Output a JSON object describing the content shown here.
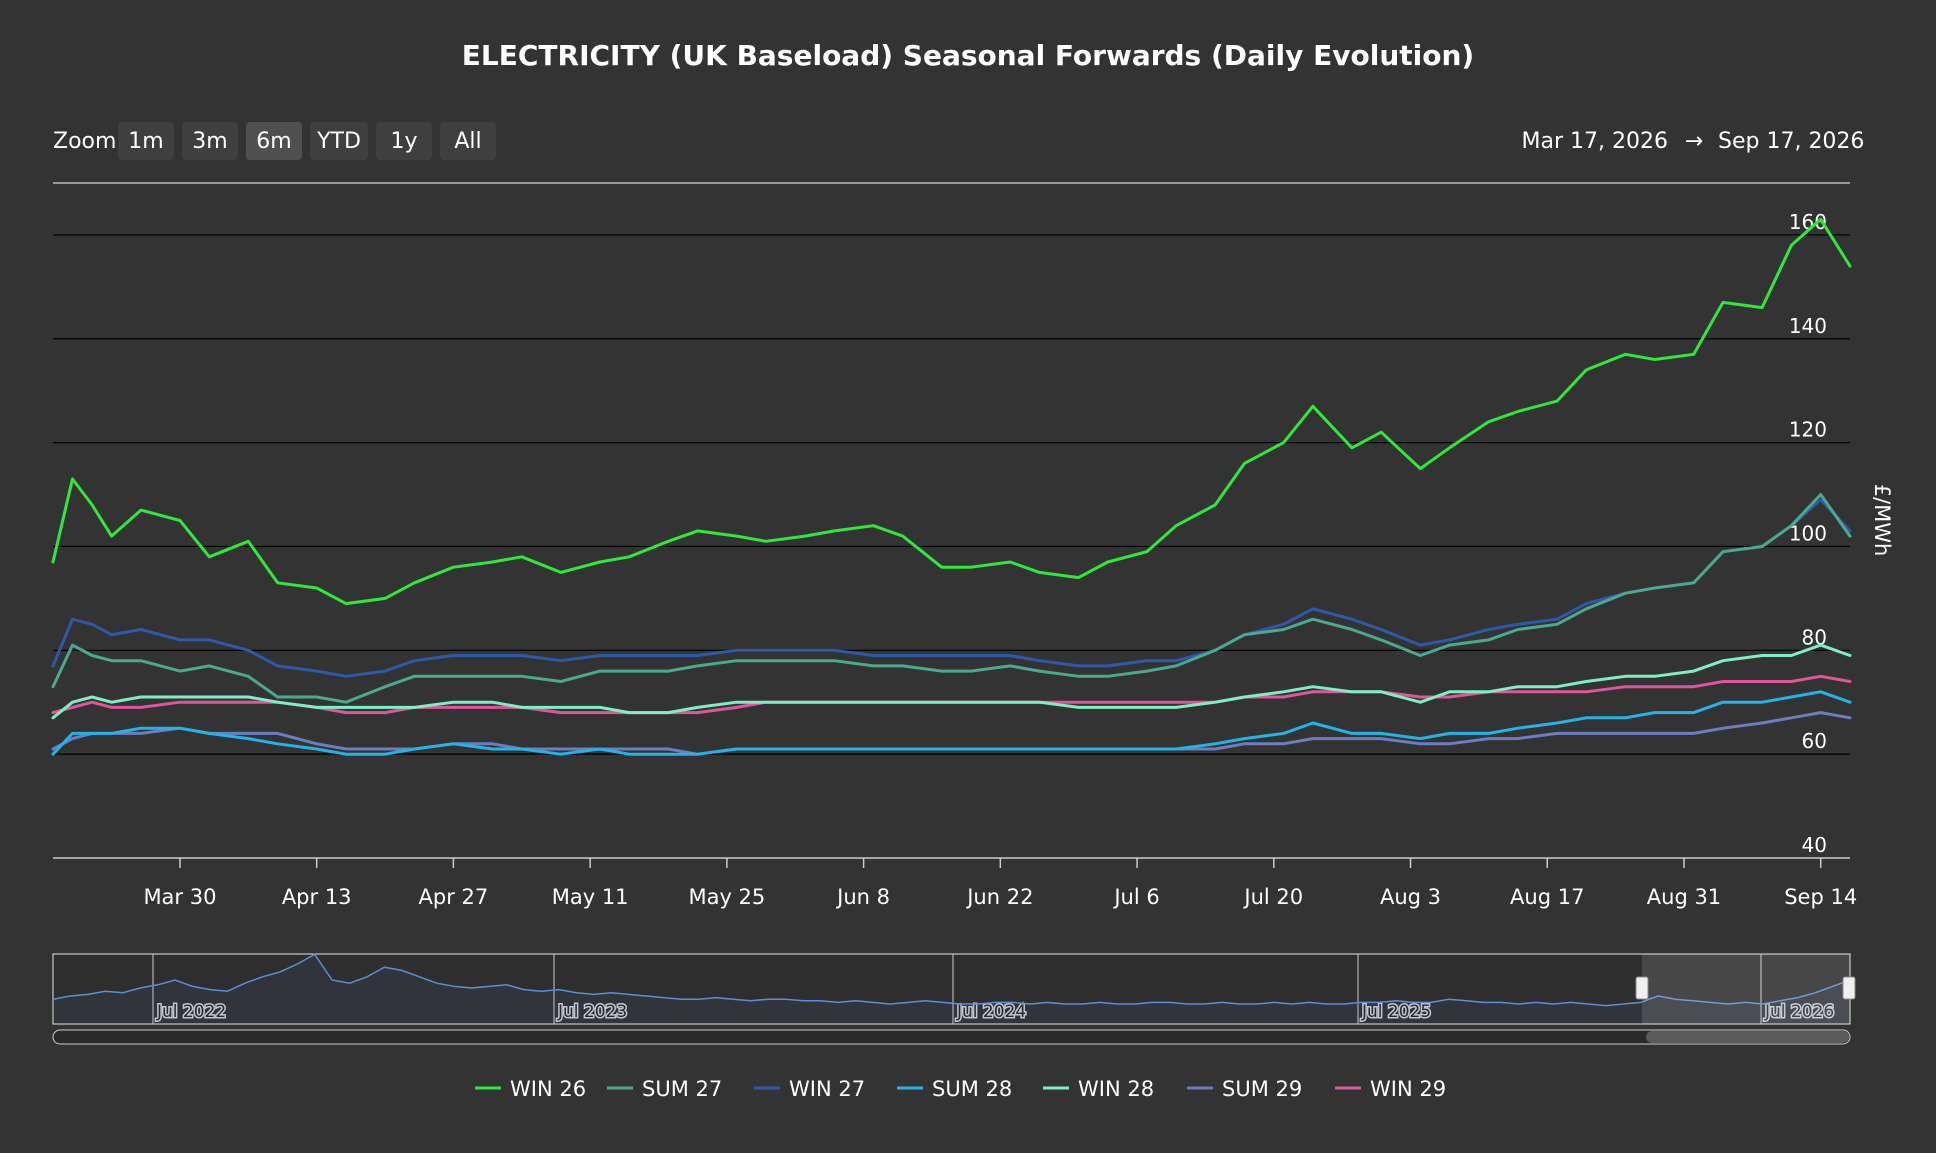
{
  "chart_data": {
    "type": "line",
    "title": "ELECTRICITY (UK Baseload) Seasonal Forwards (Daily Evolution)",
    "ylabel": "£/MWh",
    "ylim": [
      40,
      170
    ],
    "yticks": [
      "40",
      "60",
      "80",
      "100",
      "120",
      "140",
      "160"
    ],
    "xlim": [
      "2026-03-17",
      "2026-09-17"
    ],
    "xticks": [
      {
        "date": "2026-03-30",
        "label": "Mar 30"
      },
      {
        "date": "2026-04-13",
        "label": "Apr 13"
      },
      {
        "date": "2026-04-27",
        "label": "Apr 27"
      },
      {
        "date": "2026-05-11",
        "label": "May 11"
      },
      {
        "date": "2026-05-25",
        "label": "May 25"
      },
      {
        "date": "2026-06-08",
        "label": "Jun 8"
      },
      {
        "date": "2026-06-22",
        "label": "Jun 22"
      },
      {
        "date": "2026-07-06",
        "label": "Jul 6"
      },
      {
        "date": "2026-07-20",
        "label": "Jul 20"
      },
      {
        "date": "2026-08-03",
        "label": "Aug 3"
      },
      {
        "date": "2026-08-17",
        "label": "Aug 17"
      },
      {
        "date": "2026-08-31",
        "label": "Aug 31"
      },
      {
        "date": "2026-09-14",
        "label": "Sep 14"
      }
    ],
    "grid": true,
    "legend_position": "bottom",
    "x_dates": [
      "2026-03-17",
      "2026-03-19",
      "2026-03-21",
      "2026-03-23",
      "2026-03-26",
      "2026-03-30",
      "2026-04-02",
      "2026-04-06",
      "2026-04-09",
      "2026-04-13",
      "2026-04-16",
      "2026-04-20",
      "2026-04-23",
      "2026-04-27",
      "2026-05-01",
      "2026-05-04",
      "2026-05-08",
      "2026-05-12",
      "2026-05-15",
      "2026-05-19",
      "2026-05-22",
      "2026-05-26",
      "2026-05-29",
      "2026-06-02",
      "2026-06-05",
      "2026-06-09",
      "2026-06-12",
      "2026-06-16",
      "2026-06-19",
      "2026-06-23",
      "2026-06-26",
      "2026-06-30",
      "2026-07-03",
      "2026-07-07",
      "2026-07-10",
      "2026-07-14",
      "2026-07-17",
      "2026-07-21",
      "2026-07-24",
      "2026-07-28",
      "2026-07-31",
      "2026-08-04",
      "2026-08-07",
      "2026-08-11",
      "2026-08-14",
      "2026-08-18",
      "2026-08-21",
      "2026-08-25",
      "2026-08-28",
      "2026-09-01",
      "2026-09-04",
      "2026-09-08",
      "2026-09-11",
      "2026-09-14",
      "2026-09-17"
    ],
    "series": [
      {
        "name": "WIN 26",
        "color": "#2ee83a",
        "values": [
          97,
          113,
          108,
          102,
          107,
          105,
          98,
          101,
          93,
          92,
          89,
          90,
          93,
          96,
          97,
          98,
          95,
          97,
          98,
          101,
          103,
          102,
          101,
          102,
          103,
          104,
          102,
          96,
          96,
          97,
          95,
          94,
          97,
          99,
          104,
          108,
          116,
          120,
          127,
          119,
          122,
          115,
          119,
          124,
          126,
          128,
          134,
          137,
          136,
          137,
          147,
          146,
          158,
          163,
          154
        ]
      },
      {
        "name": "SUM 27",
        "color": "#4aa98f",
        "values": [
          73,
          81,
          79,
          78,
          78,
          76,
          77,
          75,
          71,
          71,
          70,
          73,
          75,
          75,
          75,
          75,
          74,
          76,
          76,
          76,
          77,
          78,
          78,
          78,
          78,
          77,
          77,
          76,
          76,
          77,
          76,
          75,
          75,
          76,
          77,
          80,
          83,
          84,
          86,
          84,
          82,
          79,
          81,
          82,
          84,
          85,
          88,
          91,
          92,
          93,
          99,
          100,
          104,
          110,
          102
        ]
      },
      {
        "name": "WIN 27",
        "color": "#2e59a8",
        "values": [
          77,
          86,
          85,
          83,
          84,
          82,
          82,
          80,
          77,
          76,
          75,
          76,
          78,
          79,
          79,
          79,
          78,
          79,
          79,
          79,
          79,
          80,
          80,
          80,
          80,
          79,
          79,
          79,
          79,
          79,
          78,
          77,
          77,
          78,
          78,
          80,
          83,
          85,
          88,
          86,
          84,
          81,
          82,
          84,
          85,
          86,
          89,
          91,
          92,
          93,
          99,
          100,
          104,
          109,
          103
        ]
      },
      {
        "name": "SUM 28",
        "color": "#22b4e6",
        "values": [
          60,
          64,
          64,
          64,
          65,
          65,
          64,
          63,
          62,
          61,
          60,
          60,
          61,
          62,
          61,
          61,
          60,
          61,
          60,
          60,
          60,
          61,
          61,
          61,
          61,
          61,
          61,
          61,
          61,
          61,
          61,
          61,
          61,
          61,
          61,
          62,
          63,
          64,
          66,
          64,
          64,
          63,
          64,
          64,
          65,
          66,
          67,
          67,
          68,
          68,
          70,
          70,
          71,
          72,
          70
        ]
      },
      {
        "name": "WIN 28",
        "color": "#7cf0c0",
        "values": [
          67,
          70,
          71,
          70,
          71,
          71,
          71,
          71,
          70,
          69,
          69,
          69,
          69,
          70,
          70,
          69,
          69,
          69,
          68,
          68,
          69,
          70,
          70,
          70,
          70,
          70,
          70,
          70,
          70,
          70,
          70,
          69,
          69,
          69,
          69,
          70,
          71,
          72,
          73,
          72,
          72,
          70,
          72,
          72,
          73,
          73,
          74,
          75,
          75,
          76,
          78,
          79,
          79,
          81,
          79
        ]
      },
      {
        "name": "SUM 29",
        "color": "#6b7ec0",
        "values": [
          61,
          63,
          64,
          64,
          64,
          65,
          64,
          64,
          64,
          62,
          61,
          61,
          61,
          62,
          62,
          61,
          61,
          61,
          61,
          61,
          60,
          61,
          61,
          61,
          61,
          61,
          61,
          61,
          61,
          61,
          61,
          61,
          61,
          61,
          61,
          61,
          62,
          62,
          63,
          63,
          63,
          62,
          62,
          63,
          63,
          64,
          64,
          64,
          64,
          64,
          65,
          66,
          67,
          68,
          67
        ]
      },
      {
        "name": "WIN 29",
        "color": "#e0559b",
        "values": [
          68,
          69,
          70,
          69,
          69,
          70,
          70,
          70,
          70,
          69,
          68,
          68,
          69,
          69,
          69,
          69,
          68,
          68,
          68,
          68,
          68,
          69,
          70,
          70,
          70,
          70,
          70,
          70,
          70,
          70,
          70,
          70,
          70,
          70,
          70,
          70,
          71,
          71,
          72,
          72,
          72,
          71,
          71,
          72,
          72,
          72,
          72,
          73,
          73,
          73,
          74,
          74,
          74,
          75,
          74
        ]
      }
    ]
  },
  "zoom": {
    "label": "Zoom",
    "buttons": [
      "1m",
      "3m",
      "6m",
      "YTD",
      "1y",
      "All"
    ],
    "active": "6m"
  },
  "range": {
    "from": "Mar 17, 2026",
    "arrow": "→",
    "to": "Sep 17, 2026"
  },
  "navigator": {
    "labels": [
      "Jul 2022",
      "Jul 2023",
      "Jul 2024",
      "Jul 2025",
      "Jul 2026"
    ]
  }
}
